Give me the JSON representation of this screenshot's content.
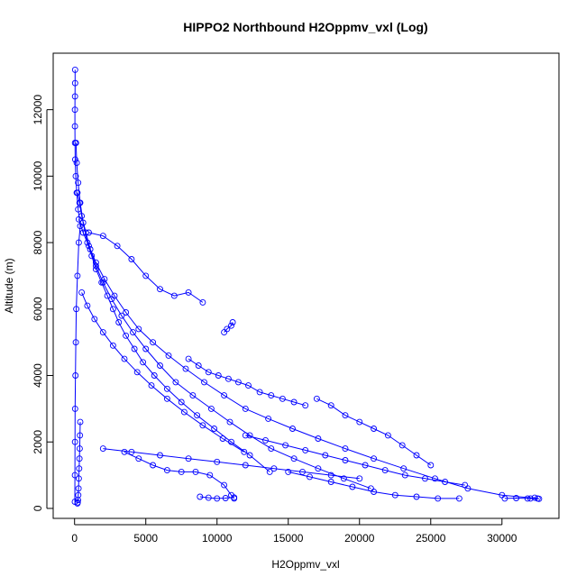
{
  "chart_data": {
    "type": "scatter",
    "title": "HIPPO2 Northbound H2Oppmv_vxl (Log)",
    "xlabel": "H2Oppmv_vxl",
    "ylabel": "Altitude (m)",
    "xlim": [
      -1500,
      34000
    ],
    "ylim": [
      -300,
      13700
    ],
    "xticks": [
      0,
      5000,
      10000,
      15000,
      20000,
      25000,
      30000
    ],
    "yticks": [
      0,
      2000,
      4000,
      6000,
      8000,
      10000,
      12000
    ],
    "grid": false,
    "legend": "none",
    "marker": "open-circle",
    "connected": true,
    "color": "#0000ff",
    "series": [
      {
        "x": [
          40,
          35,
          30,
          28,
          25,
          30,
          45,
          80,
          150,
          250,
          400,
          300,
          200,
          120,
          90,
          60,
          40,
          30,
          25,
          20
        ],
        "y": [
          13200,
          12800,
          12400,
          12000,
          11500,
          11000,
          10500,
          10000,
          9500,
          9000,
          8500,
          8000,
          7000,
          6000,
          5000,
          4000,
          3000,
          2000,
          1000,
          200
        ]
      },
      {
        "x": [
          100,
          150,
          250,
          400,
          600,
          900,
          1200,
          1500,
          1900,
          2300,
          2700,
          3100,
          3600,
          4200,
          4800,
          5600,
          6500,
          7500,
          8600,
          9800,
          11000,
          12300,
          13700
        ],
        "y": [
          11000,
          10400,
          9800,
          9200,
          8600,
          8000,
          7600,
          7200,
          6800,
          6400,
          6000,
          5600,
          5200,
          4800,
          4400,
          4000,
          3600,
          3200,
          2800,
          2400,
          2000,
          1600,
          1100
        ]
      },
      {
        "x": [
          200,
          350,
          500,
          800,
          1100,
          1500,
          2000,
          2600,
          3300,
          4100,
          5000,
          6000,
          7100,
          8300,
          9600,
          10900,
          12300,
          13800,
          15400,
          17100,
          18900,
          20800
        ],
        "y": [
          9500,
          9200,
          8800,
          8300,
          7800,
          7300,
          6800,
          6300,
          5800,
          5300,
          4800,
          4300,
          3800,
          3400,
          3000,
          2600,
          2200,
          1800,
          1500,
          1200,
          900,
          600
        ]
      },
      {
        "x": [
          300,
          600,
          1000,
          1500,
          2100,
          2800,
          3600,
          4500,
          5500,
          6600,
          7800,
          9100,
          10500,
          12000,
          13600,
          15300,
          17100,
          19000,
          21000,
          23100,
          25300,
          27600,
          30000,
          32500
        ],
        "y": [
          8700,
          8300,
          7900,
          7400,
          6900,
          6400,
          5900,
          5400,
          5000,
          4600,
          4200,
          3800,
          3400,
          3000,
          2700,
          2400,
          2100,
          1800,
          1500,
          1200,
          900,
          600,
          400,
          300
        ]
      },
      {
        "x": [
          500,
          900,
          1400,
          2000,
          2700,
          3500,
          4400,
          5400,
          6500,
          7700,
          9000,
          10400,
          11900
        ],
        "y": [
          6500,
          6100,
          5700,
          5300,
          4900,
          4500,
          4100,
          3700,
          3300,
          2900,
          2500,
          2100,
          1700
        ]
      },
      {
        "x": [
          1000,
          2000,
          3000,
          4000,
          5000,
          6000,
          7000,
          8000,
          9000
        ],
        "y": [
          8300,
          8200,
          7900,
          7500,
          7000,
          6600,
          6400,
          6500,
          6200
        ]
      },
      {
        "x": [
          3500,
          4500,
          5500,
          6500,
          7500,
          8500,
          9500,
          10500,
          11000,
          11200
        ],
        "y": [
          1700,
          1500,
          1300,
          1150,
          1100,
          1100,
          1000,
          700,
          400,
          300
        ]
      },
      {
        "x": [
          8800,
          9400,
          10000,
          10600,
          11200
        ],
        "y": [
          350,
          320,
          300,
          310,
          330
        ]
      },
      {
        "x": [
          8000,
          8700,
          9400,
          10100,
          10800,
          11500,
          12200,
          13000,
          13800,
          14600,
          15400,
          16200
        ],
        "y": [
          4500,
          4300,
          4100,
          4000,
          3900,
          3800,
          3700,
          3500,
          3400,
          3300,
          3200,
          3100
        ]
      },
      {
        "x": [
          12000,
          13400,
          14800,
          16200,
          17600,
          19000,
          20400,
          21800,
          23200,
          24600,
          26000,
          27400
        ],
        "y": [
          2200,
          2050,
          1900,
          1750,
          1600,
          1450,
          1300,
          1150,
          1000,
          900,
          800,
          700
        ]
      },
      {
        "x": [
          15000,
          16500,
          18000,
          19500,
          21000,
          22500,
          24000,
          25500,
          27000
        ],
        "y": [
          1100,
          950,
          800,
          650,
          500,
          400,
          350,
          300,
          300
        ]
      },
      {
        "x": [
          17000,
          18000,
          19000,
          20000,
          21000,
          22000,
          23000,
          24000,
          25000
        ],
        "y": [
          3300,
          3100,
          2800,
          2600,
          2400,
          2200,
          1900,
          1600,
          1300
        ]
      },
      {
        "x": [
          2000,
          4000,
          6000,
          8000,
          10000,
          12000,
          14000,
          16000,
          18000,
          20000
        ],
        "y": [
          1800,
          1700,
          1600,
          1500,
          1400,
          1300,
          1200,
          1100,
          1000,
          900
        ]
      },
      {
        "x": [
          400,
          380,
          360,
          340,
          320,
          300,
          280,
          260,
          240,
          220,
          200
        ],
        "y": [
          2600,
          2200,
          1800,
          1500,
          1200,
          900,
          600,
          400,
          250,
          180,
          150
        ]
      },
      {
        "x": [
          10500,
          10700,
          11000,
          11100
        ],
        "y": [
          5300,
          5400,
          5500,
          5600
        ]
      },
      {
        "x": [
          32000,
          32300,
          32600,
          31800,
          31000,
          30200
        ],
        "y": [
          300,
          320,
          290,
          300,
          310,
          300
        ]
      }
    ]
  }
}
